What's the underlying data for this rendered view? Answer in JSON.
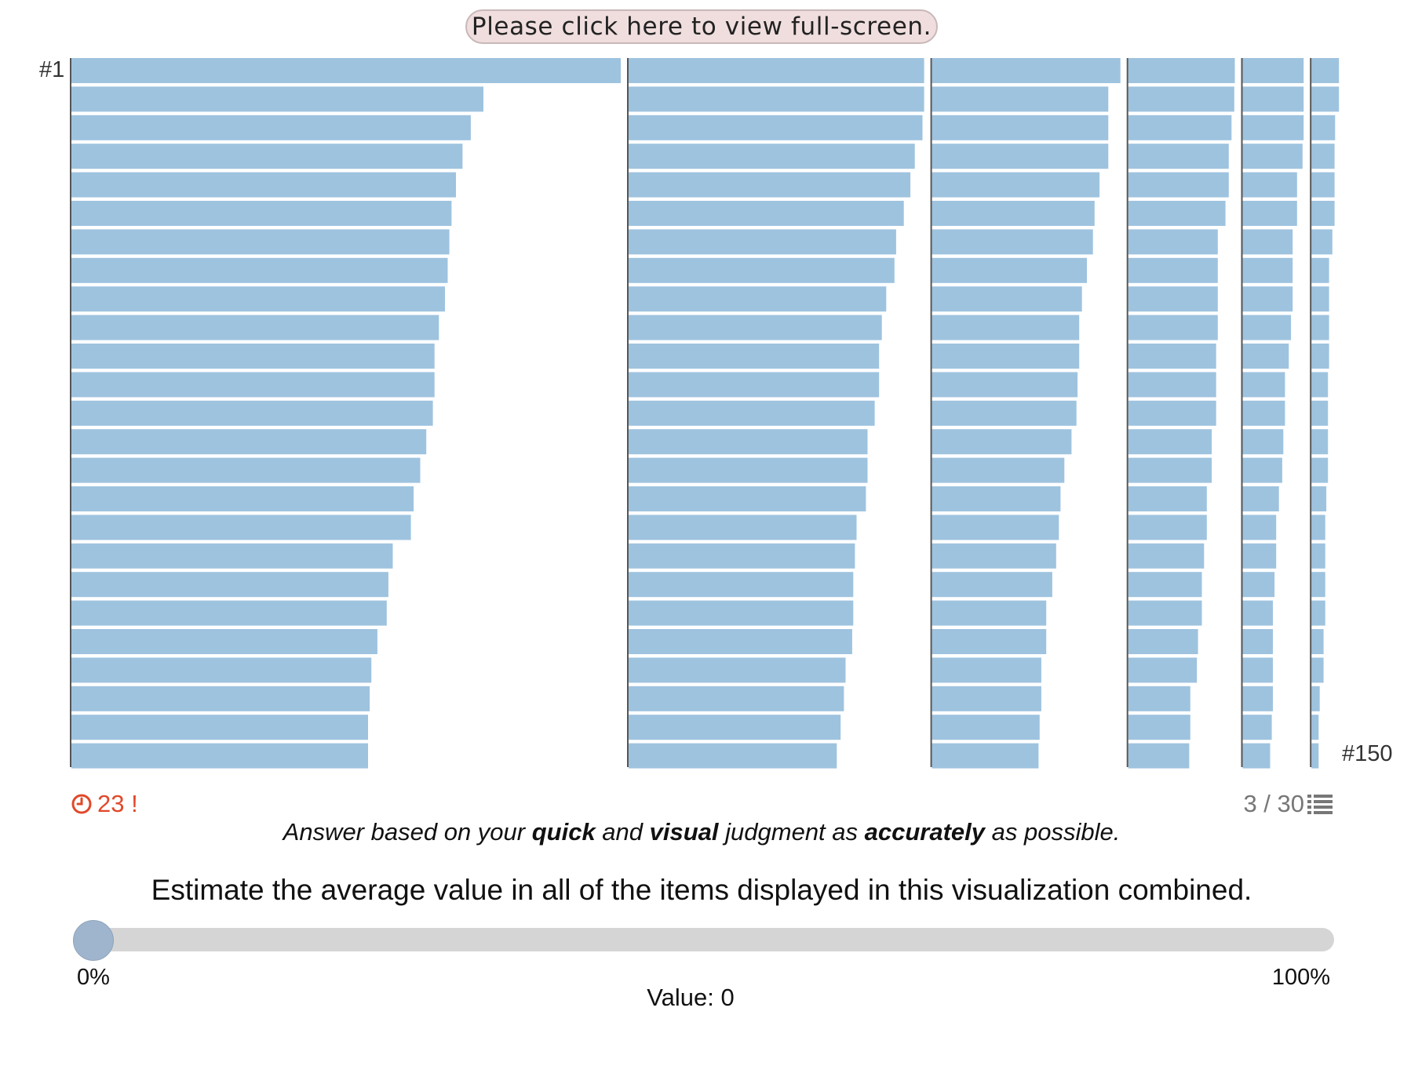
{
  "header": {
    "fullscreen_label": "Please click here to view full-screen."
  },
  "chart_data": {
    "type": "bar",
    "orientation": "horizontal",
    "layout": "six columns of 25 ranked bars",
    "bar_color": "#9ec3df",
    "first_label": "#1",
    "last_label": "#150",
    "columns": [
      [
        100,
        75,
        72.7,
        71.2,
        70,
        69.2,
        68.8,
        68.5,
        68,
        66.9,
        66.1,
        66.1,
        65.8,
        64.6,
        63.5,
        62.3,
        61.8,
        58.5,
        57.7,
        57.4,
        55.7,
        54.6,
        54.3,
        54,
        54
      ],
      [
        53.8,
        53.8,
        53.5,
        52.1,
        51.3,
        50.1,
        48.7,
        48.4,
        46.9,
        46.1,
        45.6,
        45.6,
        44.8,
        43.5,
        43.5,
        43.2,
        41.5,
        41.2,
        40.9,
        40.9,
        40.7,
        39.5,
        39.2,
        38.6,
        37.9
      ],
      [
        34.3,
        32.1,
        32.1,
        32.1,
        30.5,
        29.6,
        29.3,
        28.2,
        27.3,
        26.8,
        26.8,
        26.5,
        26.3,
        25.4,
        24.1,
        23.4,
        23.1,
        22.6,
        21.9,
        20.8,
        20.8,
        19.9,
        19.9,
        19.6,
        19.4
      ],
      [
        19.4,
        19.3,
        18.8,
        18.3,
        18.3,
        17.7,
        16.3,
        16.3,
        16.3,
        16.3,
        16,
        16,
        16,
        15.2,
        15.2,
        14.3,
        14.3,
        13.8,
        13.4,
        13.4,
        12.7,
        12.5,
        11.3,
        11.3,
        11.1
      ],
      [
        11.1,
        11.1,
        11.1,
        10.9,
        9.9,
        9.9,
        9.1,
        9.1,
        9.1,
        8.8,
        8.4,
        7.7,
        7.7,
        7.4,
        7.2,
        6.6,
        6.1,
        6.1,
        5.8,
        5.5,
        5.5,
        5.5,
        5.5,
        5.3,
        5.0
      ],
      [
        5.0,
        5.0,
        4.3,
        4.2,
        4.2,
        4.2,
        3.8,
        3.2,
        3.2,
        3.2,
        3.2,
        3.0,
        3.0,
        3.0,
        3.0,
        2.7,
        2.5,
        2.5,
        2.5,
        2.5,
        2.2,
        2.2,
        1.5,
        1.3,
        1.3
      ]
    ]
  },
  "status": {
    "timer_value": "23 !",
    "timer_color": "#e0492a",
    "progress": "3 / 30"
  },
  "instruction": {
    "part1": "Answer based on your ",
    "quick": "quick",
    "part2": " and ",
    "visual": "visual",
    "part3": " judgment as ",
    "accurately": "accurately",
    "part4": " as possible."
  },
  "question": "Estimate the average value in all of the items displayed in this visualization combined.",
  "slider": {
    "min_label": "0%",
    "max_label": "100%",
    "value": 0,
    "value_text": "Value: 0",
    "thumb_color": "#9fb5cd"
  }
}
